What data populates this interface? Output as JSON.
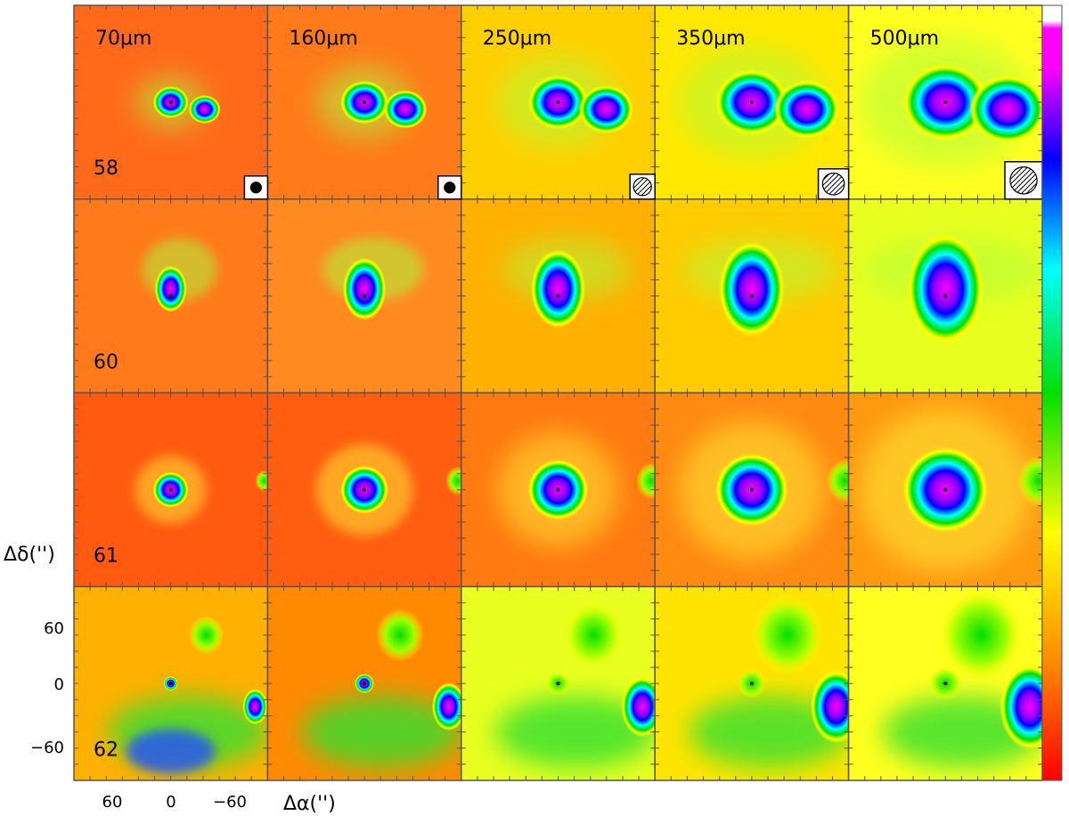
{
  "wavelength_labels": [
    "70μm",
    "160μm",
    "250μm",
    "350μm",
    "500μm"
  ],
  "source_labels": [
    "58",
    "60",
    "61",
    "62"
  ],
  "y_axis": {
    "label": "Δδ('')",
    "ticks": [
      {
        "value": 60,
        "text": "60"
      },
      {
        "value": 0,
        "text": "0"
      },
      {
        "value": -60,
        "text": "−60"
      }
    ]
  },
  "x_axis": {
    "label": "Δα('')",
    "ticks": [
      {
        "value": 60,
        "text": "60"
      },
      {
        "value": 0,
        "text": "0"
      },
      {
        "value": -60,
        "text": "−60"
      }
    ]
  },
  "colorbar": {
    "colors": [
      "#ff0000",
      "#ff8800",
      "#ffff00",
      "#00e000",
      "#00ffff",
      "#0000ff",
      "#ff00ff",
      "#ffffff"
    ]
  },
  "beam_icons": [
    {
      "column": 0,
      "style": "filled"
    },
    {
      "column": 1,
      "style": "filled"
    },
    {
      "column": 2,
      "style": "hatched"
    },
    {
      "column": 3,
      "style": "hatched"
    },
    {
      "column": 4,
      "style": "hatched"
    }
  ],
  "colors": {
    "frame": "#555555",
    "text": "#000000",
    "tick": "#555555"
  }
}
